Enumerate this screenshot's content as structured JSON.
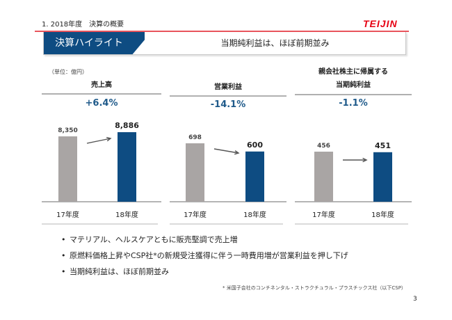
{
  "header": {
    "section_title": "1. 2018年度　決算の概要",
    "logo": "TEIJIN"
  },
  "banner": {
    "label": "決算ハイライト",
    "message": "当期純利益は、ほぼ前期並み"
  },
  "unit_label": "（単位：億円）",
  "colors": {
    "prev_year": "#a9a5a4",
    "curr_year": "#0e4c82",
    "accent": "#1f5a8a",
    "brand": "#e60012"
  },
  "chart_data": [
    {
      "type": "bar",
      "title_lines": [
        "売上高"
      ],
      "change": "+6.4%",
      "categories": [
        "17年度",
        "18年度"
      ],
      "values": [
        8350,
        8886
      ],
      "value_labels": [
        "8,350",
        "8,886"
      ],
      "arrow": "up"
    },
    {
      "type": "bar",
      "title_lines": [
        "営業利益"
      ],
      "change": "-14.1%",
      "categories": [
        "17年度",
        "18年度"
      ],
      "values": [
        698,
        600
      ],
      "value_labels": [
        "698",
        "600"
      ],
      "arrow": "down"
    },
    {
      "type": "bar",
      "title_lines": [
        "親会社株主に帰属する",
        "当期純利益"
      ],
      "change": "-1.1%",
      "categories": [
        "17年度",
        "18年度"
      ],
      "values": [
        456,
        451
      ],
      "value_labels": [
        "456",
        "451"
      ],
      "arrow": "flat"
    }
  ],
  "bullets": [
    "マテリアル、ヘルスケアともに販売堅調で売上増",
    "原燃料価格上昇やCSP社*の新規受注獲得に伴う一時費用増が営業利益を押し下げ",
    "当期純利益は、ほぼ前期並み"
  ],
  "bullet_marker": "•",
  "footnote": "* 米国子会社のコンチネンタル・ストラクチュラル・プラスチックス社（以下CSP）",
  "page_number": "3"
}
